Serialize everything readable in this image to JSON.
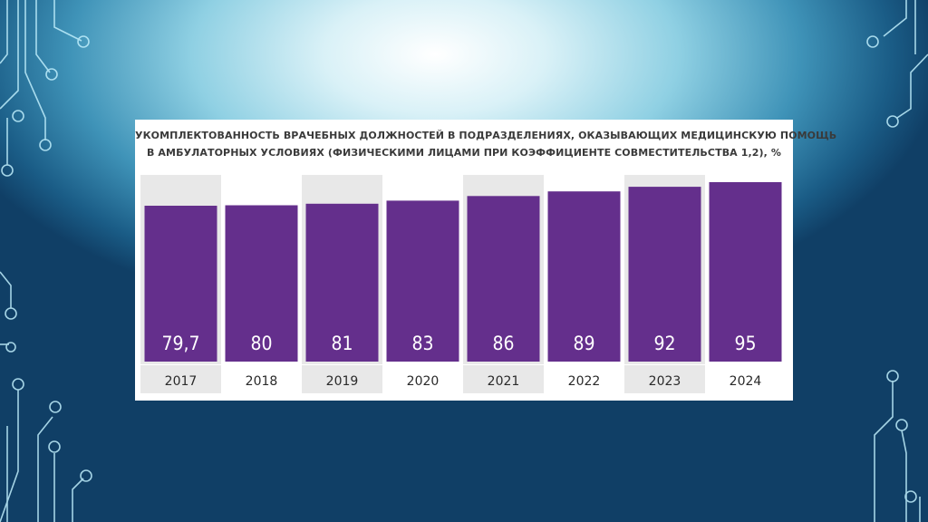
{
  "chart_data": {
    "type": "bar",
    "title_lines": [
      "Укомплектованность врачебных должностей в подразделениях, оказывающих медицинскую помощь",
      "в амбулаторных условиях (физическими лицами при коэффициенте совместительства 1,2), %"
    ],
    "categories": [
      "2017",
      "2018",
      "2019",
      "2020",
      "2021",
      "2022",
      "2023",
      "2024"
    ],
    "values": [
      79.7,
      80,
      81,
      83,
      86,
      89,
      92,
      95
    ],
    "value_labels": [
      "79,7",
      "80",
      "81",
      "83",
      "86",
      "89",
      "92",
      "95"
    ],
    "ylim": [
      0,
      95
    ],
    "grid": false,
    "legend": "none"
  },
  "colors": {
    "bar": "#642f8c",
    "column_band": "#e8e8e8",
    "panel": "#ffffff",
    "value_text": "#ffffff",
    "year_text": "#2a2a2a"
  }
}
